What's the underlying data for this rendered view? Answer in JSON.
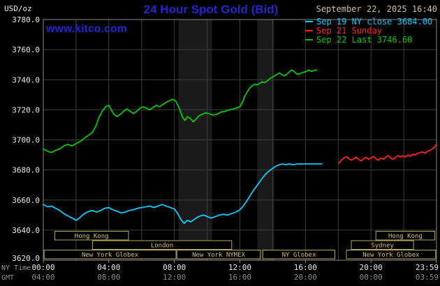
{
  "header": {
    "units_label": "USD/oz",
    "title": "24 Hour Spot Gold (Bid)",
    "datetime": "September 22, 2025 16:40",
    "watermark": "www.kitco.com"
  },
  "legend": [
    {
      "label": "Sep 19 NY close 3684.00",
      "color": "#00ccff"
    },
    {
      "label": "Sep 21 Sunday",
      "color": "#ff2020"
    },
    {
      "label": "Sep 22 Last 3746.60",
      "color": "#00cc00"
    }
  ],
  "colors": {
    "background": "#000000",
    "kitco_blue": "#2525cd",
    "date_tan": "#cfc08f",
    "grid": "#3d3d3d",
    "border": "#8a8a8a",
    "axis_text": "#e8e8e8",
    "gmt_text": "#8a8a8a",
    "caption_text": "#9a9a9a",
    "session_border": "#b8a95a",
    "session_text": "#cdbd7a",
    "band": "#1a1a1a"
  },
  "chart_data": {
    "type": "line",
    "title": "24 Hour Spot Gold (Bid)",
    "x_axis": {
      "caption_ny": "NY Time",
      "caption_gmt": "GMT",
      "range_hours": [
        0,
        24
      ],
      "ticks": [
        {
          "h": 0,
          "ny": "00:00",
          "gmt": "04:00"
        },
        {
          "h": 4,
          "ny": "04:00",
          "gmt": "08:00"
        },
        {
          "h": 8,
          "ny": "08:00",
          "gmt": "12:00"
        },
        {
          "h": 12,
          "ny": "12:00",
          "gmt": "16:00"
        },
        {
          "h": 16,
          "ny": "16:00",
          "gmt": "20:00"
        },
        {
          "h": 20,
          "ny": "20:00",
          "gmt": "00:00"
        },
        {
          "h": 23.983,
          "ny": "23:59",
          "gmt": "03:59"
        }
      ]
    },
    "y_axis": {
      "unit": "USD/oz",
      "range": [
        3620,
        3780
      ],
      "step": 20,
      "ticks": [
        {
          "v": 3780,
          "label": "3780.0"
        },
        {
          "v": 3760,
          "label": "3760.0"
        },
        {
          "v": 3740,
          "label": "3740.0"
        },
        {
          "v": 3720,
          "label": "3720.0"
        },
        {
          "v": 3700,
          "label": "3700.0"
        },
        {
          "v": 3680,
          "label": "3680.0"
        },
        {
          "v": 3660,
          "label": "3660.0"
        },
        {
          "v": 3640,
          "label": "3640.0"
        },
        {
          "v": 3620,
          "label": "3620.0"
        }
      ]
    },
    "shaded_bands_hours": [
      [
        8.25,
        10.3
      ],
      [
        13.05,
        14.1
      ]
    ],
    "sessions": [
      {
        "label": "Hong Kong",
        "row": 0,
        "start": 0.7,
        "end": 5.2
      },
      {
        "label": "Hong Kong",
        "row": 0,
        "start": 20.3,
        "end": 23.9
      },
      {
        "label": "London",
        "row": 1,
        "start": 3.0,
        "end": 11.5
      },
      {
        "label": "Sydney",
        "row": 1,
        "start": 18.8,
        "end": 22.6
      },
      {
        "label": "New York Globex",
        "row": 2,
        "start": 0.05,
        "end": 8.1
      },
      {
        "label": "New York NYMEX",
        "row": 2,
        "start": 8.15,
        "end": 13.25
      },
      {
        "label": "NY Globex",
        "row": 2,
        "start": 13.4,
        "end": 17.8
      },
      {
        "label": "New York Globex",
        "row": 2,
        "start": 18.5,
        "end": 23.95
      }
    ],
    "series": [
      {
        "id": "sep19",
        "name": "Sep 19 NY close 3684.00",
        "color": "#00ccff",
        "points": [
          [
            0,
            3657
          ],
          [
            0.25,
            3655.5
          ],
          [
            0.5,
            3656
          ],
          [
            0.75,
            3654.5
          ],
          [
            1,
            3653
          ],
          [
            1.25,
            3651
          ],
          [
            1.5,
            3649.5
          ],
          [
            1.75,
            3648
          ],
          [
            2,
            3646.5
          ],
          [
            2.2,
            3648
          ],
          [
            2.4,
            3650
          ],
          [
            2.6,
            3651.5
          ],
          [
            2.8,
            3652.5
          ],
          [
            3,
            3653
          ],
          [
            3.25,
            3652
          ],
          [
            3.5,
            3653
          ],
          [
            3.75,
            3654.5
          ],
          [
            4,
            3655
          ],
          [
            4.25,
            3653.5
          ],
          [
            4.5,
            3652.5
          ],
          [
            4.75,
            3651.5
          ],
          [
            5,
            3652
          ],
          [
            5.25,
            3653
          ],
          [
            5.5,
            3653.5
          ],
          [
            5.75,
            3654.5
          ],
          [
            6,
            3655
          ],
          [
            6.25,
            3655.5
          ],
          [
            6.5,
            3656
          ],
          [
            6.75,
            3655
          ],
          [
            7,
            3656
          ],
          [
            7.25,
            3657
          ],
          [
            7.5,
            3656
          ],
          [
            7.75,
            3655
          ],
          [
            8,
            3654
          ],
          [
            8.2,
            3651
          ],
          [
            8.4,
            3647
          ],
          [
            8.6,
            3644.5
          ],
          [
            8.8,
            3646.5
          ],
          [
            9,
            3645.5
          ],
          [
            9.2,
            3647
          ],
          [
            9.4,
            3648.5
          ],
          [
            9.6,
            3649.5
          ],
          [
            9.8,
            3650
          ],
          [
            10,
            3649
          ],
          [
            10.25,
            3648
          ],
          [
            10.5,
            3649
          ],
          [
            10.75,
            3650
          ],
          [
            11,
            3650.5
          ],
          [
            11.25,
            3650
          ],
          [
            11.5,
            3651
          ],
          [
            11.75,
            3652
          ],
          [
            12,
            3653.5
          ],
          [
            12.2,
            3656
          ],
          [
            12.4,
            3659
          ],
          [
            12.6,
            3662.5
          ],
          [
            12.8,
            3666
          ],
          [
            13,
            3669
          ],
          [
            13.2,
            3672
          ],
          [
            13.4,
            3675
          ],
          [
            13.6,
            3677.5
          ],
          [
            13.8,
            3679.5
          ],
          [
            14,
            3681
          ],
          [
            14.2,
            3682.5
          ],
          [
            14.4,
            3683.5
          ],
          [
            14.6,
            3684
          ],
          [
            14.8,
            3683.5
          ],
          [
            15,
            3684
          ],
          [
            15.25,
            3683.5
          ],
          [
            15.5,
            3684
          ],
          [
            15.75,
            3684
          ],
          [
            16,
            3684
          ],
          [
            16.25,
            3684
          ],
          [
            16.5,
            3684
          ],
          [
            16.75,
            3684
          ],
          [
            17,
            3684
          ]
        ]
      },
      {
        "id": "sep21",
        "name": "Sep 21 Sunday",
        "color": "#ff2020",
        "points": [
          [
            18.05,
            3684.5
          ],
          [
            18.2,
            3686.5
          ],
          [
            18.35,
            3688
          ],
          [
            18.5,
            3689
          ],
          [
            18.65,
            3687.5
          ],
          [
            18.8,
            3686.5
          ],
          [
            18.95,
            3687.5
          ],
          [
            19.1,
            3688.5
          ],
          [
            19.25,
            3687
          ],
          [
            19.4,
            3686
          ],
          [
            19.55,
            3687.5
          ],
          [
            19.7,
            3688.5
          ],
          [
            19.85,
            3687
          ],
          [
            20,
            3688
          ],
          [
            20.15,
            3689
          ],
          [
            20.3,
            3687.5
          ],
          [
            20.45,
            3686.5
          ],
          [
            20.6,
            3688
          ],
          [
            20.75,
            3687
          ],
          [
            20.9,
            3688.5
          ],
          [
            21.05,
            3689.5
          ],
          [
            21.2,
            3688
          ],
          [
            21.35,
            3687
          ],
          [
            21.5,
            3688.5
          ],
          [
            21.65,
            3689.5
          ],
          [
            21.8,
            3688.5
          ],
          [
            21.95,
            3689.5
          ],
          [
            22.1,
            3688.5
          ],
          [
            22.25,
            3690
          ],
          [
            22.4,
            3689
          ],
          [
            22.55,
            3690.5
          ],
          [
            22.7,
            3690
          ],
          [
            22.85,
            3691
          ],
          [
            23,
            3691.5
          ],
          [
            23.15,
            3692
          ],
          [
            23.3,
            3691
          ],
          [
            23.45,
            3692.5
          ],
          [
            23.6,
            3693
          ],
          [
            23.75,
            3694
          ],
          [
            23.9,
            3695.5
          ],
          [
            23.98,
            3697
          ]
        ]
      },
      {
        "id": "sep22",
        "name": "Sep 22 Last 3746.60",
        "color": "#00cc00",
        "points": [
          [
            0,
            3694
          ],
          [
            0.25,
            3692.5
          ],
          [
            0.5,
            3691.5
          ],
          [
            0.75,
            3693
          ],
          [
            1,
            3694
          ],
          [
            1.25,
            3696
          ],
          [
            1.5,
            3697
          ],
          [
            1.75,
            3696
          ],
          [
            2,
            3697.5
          ],
          [
            2.25,
            3699
          ],
          [
            2.5,
            3701
          ],
          [
            2.75,
            3703
          ],
          [
            3,
            3705
          ],
          [
            3.2,
            3709
          ],
          [
            3.4,
            3715
          ],
          [
            3.6,
            3719
          ],
          [
            3.8,
            3722
          ],
          [
            4,
            3723
          ],
          [
            4.15,
            3720
          ],
          [
            4.3,
            3717
          ],
          [
            4.5,
            3715.5
          ],
          [
            4.7,
            3717
          ],
          [
            4.9,
            3719
          ],
          [
            5.1,
            3720.5
          ],
          [
            5.3,
            3719
          ],
          [
            5.5,
            3717.5
          ],
          [
            5.7,
            3719
          ],
          [
            5.9,
            3721
          ],
          [
            6.1,
            3722
          ],
          [
            6.3,
            3721
          ],
          [
            6.5,
            3720
          ],
          [
            6.7,
            3721.5
          ],
          [
            6.9,
            3723
          ],
          [
            7.1,
            3722
          ],
          [
            7.3,
            3723.5
          ],
          [
            7.5,
            3725
          ],
          [
            7.7,
            3726
          ],
          [
            7.9,
            3727
          ],
          [
            8.1,
            3725.5
          ],
          [
            8.3,
            3721
          ],
          [
            8.5,
            3715
          ],
          [
            8.65,
            3713
          ],
          [
            8.8,
            3715.5
          ],
          [
            9,
            3714
          ],
          [
            9.15,
            3712
          ],
          [
            9.3,
            3713.5
          ],
          [
            9.5,
            3716
          ],
          [
            9.7,
            3717
          ],
          [
            9.9,
            3718
          ],
          [
            10.1,
            3717.5
          ],
          [
            10.35,
            3716.5
          ],
          [
            10.6,
            3717
          ],
          [
            10.85,
            3718.5
          ],
          [
            11.1,
            3719
          ],
          [
            11.35,
            3720
          ],
          [
            11.6,
            3720.5
          ],
          [
            11.85,
            3721.5
          ],
          [
            12,
            3722
          ],
          [
            12.15,
            3725
          ],
          [
            12.3,
            3729
          ],
          [
            12.45,
            3732
          ],
          [
            12.6,
            3734.5
          ],
          [
            12.75,
            3736
          ],
          [
            12.9,
            3737
          ],
          [
            13.05,
            3736.5
          ],
          [
            13.2,
            3737.5
          ],
          [
            13.35,
            3738.5
          ],
          [
            13.5,
            3738
          ],
          [
            13.65,
            3739
          ],
          [
            13.8,
            3740.5
          ],
          [
            13.95,
            3741.5
          ],
          [
            14.1,
            3742.5
          ],
          [
            14.25,
            3743.5
          ],
          [
            14.4,
            3744.5
          ],
          [
            14.55,
            3743.5
          ],
          [
            14.7,
            3742.5
          ],
          [
            14.85,
            3743.5
          ],
          [
            15,
            3745
          ],
          [
            15.15,
            3746.5
          ],
          [
            15.3,
            3745.5
          ],
          [
            15.45,
            3744
          ],
          [
            15.6,
            3743.5
          ],
          [
            15.75,
            3744.5
          ],
          [
            15.9,
            3745
          ],
          [
            16.05,
            3745.5
          ],
          [
            16.2,
            3746.5
          ],
          [
            16.35,
            3745.5
          ],
          [
            16.5,
            3746
          ],
          [
            16.67,
            3746.6
          ]
        ]
      }
    ]
  }
}
